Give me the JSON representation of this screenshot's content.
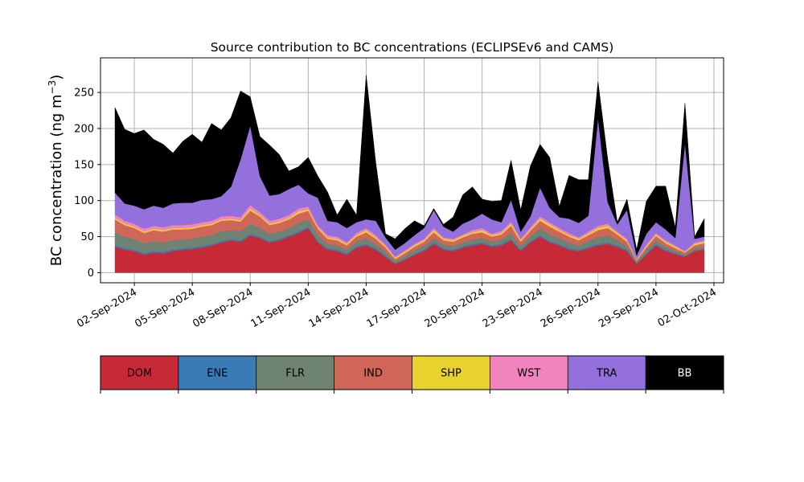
{
  "chart_data": {
    "type": "area",
    "stacked": true,
    "title": "Source contribution to BC concentrations (ECLIPSEv6 and CAMS)",
    "ylabel": "BC concentration (ng m",
    "ylabel_sup": "−3",
    "ylabel_suffix": ")",
    "xlabel": "",
    "grid": true,
    "xlim": [
      "2024-08-31T06:00",
      "2024-10-02T12:00"
    ],
    "ylim": [
      -14,
      298
    ],
    "yticks": [
      0,
      50,
      100,
      150,
      200,
      250
    ],
    "xticks": [
      {
        "date": "2024-09-02",
        "label": "02-Sep-2024"
      },
      {
        "date": "2024-09-05",
        "label": "05-Sep-2024"
      },
      {
        "date": "2024-09-08",
        "label": "08-Sep-2024"
      },
      {
        "date": "2024-09-11",
        "label": "11-Sep-2024"
      },
      {
        "date": "2024-09-14",
        "label": "14-Sep-2024"
      },
      {
        "date": "2024-09-17",
        "label": "17-Sep-2024"
      },
      {
        "date": "2024-09-20",
        "label": "20-Sep-2024"
      },
      {
        "date": "2024-09-23",
        "label": "23-Sep-2024"
      },
      {
        "date": "2024-09-26",
        "label": "26-Sep-2024"
      },
      {
        "date": "2024-09-29",
        "label": "29-Sep-2024"
      },
      {
        "date": "2024-10-02",
        "label": "02-Oct-2024"
      }
    ],
    "x": [
      "2024-09-01T00:00",
      "2024-09-01T12:00",
      "2024-09-02T00:00",
      "2024-09-02T12:00",
      "2024-09-03T00:00",
      "2024-09-03T12:00",
      "2024-09-04T00:00",
      "2024-09-04T12:00",
      "2024-09-05T00:00",
      "2024-09-05T12:00",
      "2024-09-06T00:00",
      "2024-09-06T12:00",
      "2024-09-07T00:00",
      "2024-09-07T12:00",
      "2024-09-08T00:00",
      "2024-09-08T12:00",
      "2024-09-09T00:00",
      "2024-09-09T12:00",
      "2024-09-10T00:00",
      "2024-09-10T12:00",
      "2024-09-11T00:00",
      "2024-09-11T12:00",
      "2024-09-12T00:00",
      "2024-09-12T12:00",
      "2024-09-13T00:00",
      "2024-09-13T12:00",
      "2024-09-14T00:00",
      "2024-09-14T12:00",
      "2024-09-15T00:00",
      "2024-09-15T12:00",
      "2024-09-16T00:00",
      "2024-09-16T12:00",
      "2024-09-17T00:00",
      "2024-09-17T12:00",
      "2024-09-18T00:00",
      "2024-09-18T12:00",
      "2024-09-19T00:00",
      "2024-09-19T12:00",
      "2024-09-20T00:00",
      "2024-09-20T12:00",
      "2024-09-21T00:00",
      "2024-09-21T12:00",
      "2024-09-22T00:00",
      "2024-09-22T12:00",
      "2024-09-23T00:00",
      "2024-09-23T12:00",
      "2024-09-24T00:00",
      "2024-09-24T12:00",
      "2024-09-25T00:00",
      "2024-09-25T12:00",
      "2024-09-26T00:00",
      "2024-09-26T12:00",
      "2024-09-27T00:00",
      "2024-09-27T12:00",
      "2024-09-28T00:00",
      "2024-09-28T12:00",
      "2024-09-29T00:00",
      "2024-09-29T12:00",
      "2024-09-30T00:00",
      "2024-09-30T12:00",
      "2024-10-01T00:00",
      "2024-10-01T12:00"
    ],
    "series": [
      {
        "name": "DOM",
        "color": "#c62a37",
        "values": [
          36,
          32,
          30,
          25,
          28,
          27,
          30,
          32,
          33,
          35,
          38,
          42,
          45,
          43,
          52,
          48,
          42,
          45,
          50,
          55,
          62,
          42,
          32,
          30,
          25,
          35,
          38,
          32,
          22,
          12,
          18,
          25,
          30,
          40,
          32,
          30,
          35,
          38,
          40,
          36,
          38,
          45,
          30,
          42,
          50,
          42,
          38,
          32,
          30,
          34,
          38,
          40,
          36,
          30,
          12,
          25,
          38,
          30,
          26,
          22,
          30,
          32
        ]
      },
      {
        "name": "ENE",
        "color": "#3a7ab5",
        "values": [
          2,
          2,
          2,
          2,
          2,
          2,
          2,
          2,
          2,
          2,
          2,
          2,
          2,
          2,
          2,
          2,
          2,
          2,
          2,
          2,
          2,
          2,
          2,
          2,
          2,
          2,
          2,
          2,
          2,
          1,
          1,
          1,
          2,
          2,
          2,
          2,
          2,
          2,
          2,
          2,
          2,
          2,
          2,
          2,
          2,
          2,
          2,
          2,
          2,
          2,
          2,
          2,
          2,
          2,
          1,
          2,
          2,
          2,
          1,
          1,
          1,
          1
        ]
      },
      {
        "name": "FLR",
        "color": "#6e8372",
        "values": [
          18,
          16,
          15,
          14,
          14,
          13,
          13,
          12,
          12,
          13,
          12,
          14,
          12,
          12,
          14,
          12,
          10,
          10,
          10,
          12,
          10,
          8,
          6,
          6,
          5,
          6,
          8,
          6,
          5,
          3,
          4,
          5,
          5,
          6,
          5,
          5,
          5,
          6,
          6,
          5,
          6,
          8,
          5,
          6,
          10,
          10,
          8,
          8,
          6,
          8,
          10,
          10,
          7,
          5,
          2,
          4,
          5,
          4,
          3,
          2,
          3,
          3
        ]
      },
      {
        "name": "IND",
        "color": "#cf6657",
        "values": [
          18,
          16,
          15,
          14,
          15,
          15,
          15,
          14,
          14,
          14,
          14,
          14,
          14,
          14,
          18,
          16,
          12,
          12,
          12,
          13,
          12,
          9,
          7,
          7,
          6,
          7,
          8,
          7,
          6,
          3,
          4,
          5,
          6,
          8,
          6,
          6,
          7,
          8,
          8,
          7,
          7,
          10,
          6,
          8,
          10,
          10,
          9,
          8,
          7,
          8,
          9,
          10,
          8,
          6,
          2,
          4,
          6,
          5,
          4,
          3,
          4,
          5
        ]
      },
      {
        "name": "SHP",
        "color": "#e8d22d",
        "values": [
          2,
          2,
          2,
          2,
          2,
          2,
          2,
          2,
          2,
          2,
          2,
          2,
          2,
          2,
          3,
          2,
          2,
          2,
          2,
          3,
          2,
          2,
          2,
          2,
          2,
          2,
          3,
          2,
          2,
          2,
          2,
          2,
          2,
          3,
          2,
          2,
          2,
          2,
          3,
          2,
          2,
          3,
          2,
          2,
          3,
          3,
          2,
          2,
          2,
          2,
          3,
          3,
          2,
          2,
          1,
          2,
          2,
          2,
          2,
          1,
          2,
          2
        ]
      },
      {
        "name": "WST",
        "color": "#f183bf",
        "values": [
          5,
          4,
          4,
          4,
          4,
          4,
          4,
          4,
          4,
          4,
          4,
          4,
          4,
          4,
          5,
          4,
          4,
          4,
          4,
          4,
          4,
          3,
          3,
          3,
          2,
          3,
          3,
          3,
          2,
          1,
          2,
          2,
          2,
          3,
          2,
          2,
          2,
          3,
          3,
          2,
          3,
          3,
          2,
          3,
          3,
          3,
          3,
          3,
          2,
          3,
          3,
          3,
          2,
          2,
          1,
          2,
          2,
          2,
          2,
          1,
          2,
          2
        ]
      },
      {
        "name": "TRA",
        "color": "#9370db",
        "values": [
          30,
          24,
          25,
          27,
          28,
          27,
          30,
          31,
          30,
          31,
          30,
          28,
          40,
          80,
          110,
          50,
          35,
          34,
          36,
          33,
          18,
          38,
          20,
          20,
          20,
          15,
          12,
          20,
          10,
          10,
          10,
          12,
          15,
          25,
          15,
          10,
          15,
          15,
          20,
          20,
          12,
          30,
          10,
          15,
          40,
          20,
          15,
          20,
          20,
          22,
          150,
          30,
          10,
          40,
          5,
          15,
          15,
          15,
          10,
          150,
          5,
          5
        ]
      },
      {
        "name": "BB",
        "color": "#000000",
        "values": [
          118,
          103,
          100,
          110,
          92,
          88,
          70,
          85,
          95,
          80,
          105,
          92,
          96,
          95,
          40,
          55,
          70,
          55,
          25,
          25,
          50,
          30,
          40,
          10,
          40,
          10,
          200,
          80,
          5,
          15,
          20,
          20,
          3,
          2,
          3,
          20,
          40,
          45,
          20,
          25,
          30,
          55,
          30,
          70,
          60,
          70,
          15,
          60,
          60,
          50,
          50,
          60,
          3,
          15,
          8,
          45,
          50,
          60,
          15,
          55,
          3,
          25
        ]
      }
    ]
  },
  "legend": {
    "items": [
      {
        "label": "DOM",
        "color": "#c62a37",
        "text_color": "#000000"
      },
      {
        "label": "ENE",
        "color": "#3a7ab5",
        "text_color": "#000000"
      },
      {
        "label": "FLR",
        "color": "#6e8372",
        "text_color": "#000000"
      },
      {
        "label": "IND",
        "color": "#cf6657",
        "text_color": "#000000"
      },
      {
        "label": "SHP",
        "color": "#e8d22d",
        "text_color": "#000000"
      },
      {
        "label": "WST",
        "color": "#f183bf",
        "text_color": "#000000"
      },
      {
        "label": "TRA",
        "color": "#9370db",
        "text_color": "#000000"
      },
      {
        "label": "BB",
        "color": "#000000",
        "text_color": "#ffffff"
      }
    ]
  }
}
